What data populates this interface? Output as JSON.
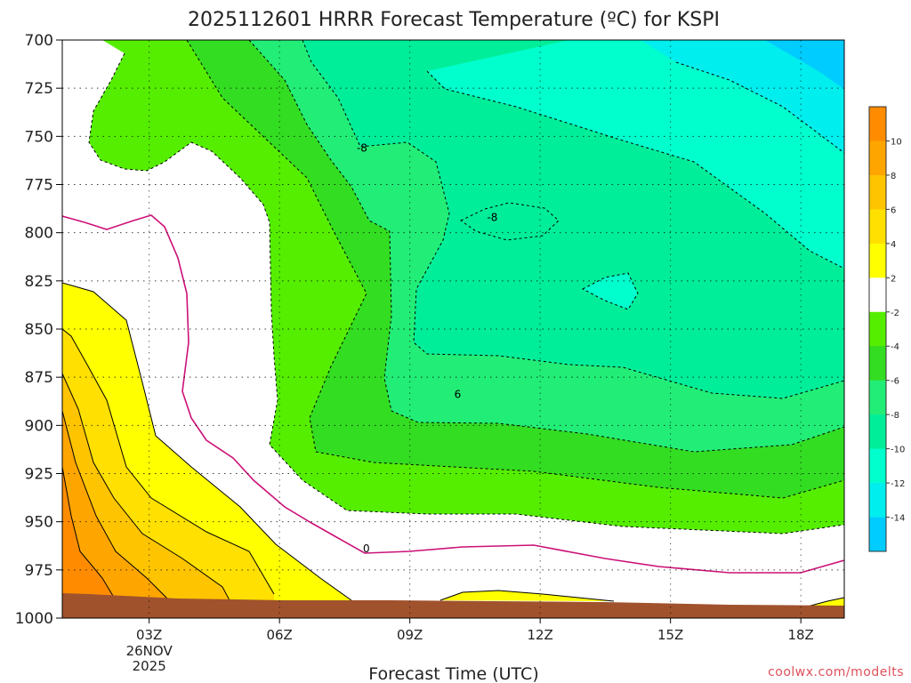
{
  "title": "2025112601 HRRR Forecast Temperature (ºC) for KSPI",
  "credit": "coolwx.com/modelts",
  "chart_data": {
    "type": "heatmap",
    "title": "2025112601 HRRR Forecast Temperature (ºC) for KSPI",
    "xlabel": "Forecast Time (UTC)",
    "ylabel": "",
    "x_unit": "forecast hour",
    "xlim": [
      1,
      19
    ],
    "ylim": [
      700,
      1000
    ],
    "y_reversed": true,
    "y_ticks": [
      700,
      725,
      750,
      775,
      800,
      825,
      850,
      875,
      900,
      925,
      950,
      975,
      1000
    ],
    "x_ticks": [
      {
        "hour": 3,
        "label": "03Z",
        "date_lines": [
          "26NOV",
          "2025"
        ]
      },
      {
        "hour": 6,
        "label": "06Z"
      },
      {
        "hour": 9,
        "label": "09Z"
      },
      {
        "hour": 12,
        "label": "12Z"
      },
      {
        "hour": 15,
        "label": "15Z"
      },
      {
        "hour": 18,
        "label": "18Z"
      }
    ],
    "grid": true,
    "colorbar": {
      "placement": "right",
      "levels": [
        "10",
        "8",
        "6",
        "4",
        "2",
        "-2",
        "-4",
        "-6",
        "-8",
        "-10",
        "-12",
        "-14"
      ],
      "colors": [
        "#ff8c00",
        "#ffa500",
        "#ffc400",
        "#ffe000",
        "#ffff00",
        "#ffffff",
        "#55ee00",
        "#33dd22",
        "#22ee77",
        "#00ee99",
        "#00ffcc",
        "#00eeee",
        "#00ccff"
      ]
    },
    "contour_labels": [
      {
        "text": "-8",
        "hour": 7.9,
        "p": 756
      },
      {
        "text": "-8",
        "hour": 10.9,
        "p": 792
      },
      {
        "text": "6",
        "hour": 10.1,
        "p": 884
      },
      {
        "text": "0",
        "hour": 8.0,
        "p": 964
      }
    ],
    "legend": "none"
  }
}
